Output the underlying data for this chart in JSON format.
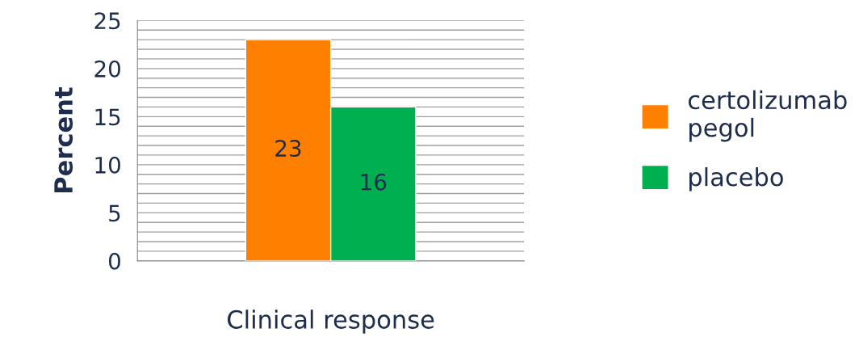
{
  "chart_data": {
    "type": "bar",
    "ylabel": "Percent",
    "xlabel": "Clinical response",
    "categories": [
      null
    ],
    "series": [
      {
        "name": "certolizumab pegol",
        "color": "#ff8000",
        "values": [
          23
        ]
      },
      {
        "name": "placebo",
        "color": "#00b050",
        "values": [
          16
        ]
      }
    ],
    "ylim": [
      0,
      25
    ],
    "yticks": [
      0,
      {
        "value": 1,
        "label": null
      },
      {
        "value": 2,
        "label": null
      },
      {
        "value": 3,
        "label": null
      },
      {
        "value": 4,
        "label": null
      },
      5,
      {
        "value": 6,
        "label": null
      },
      {
        "value": 7,
        "label": null
      },
      {
        "value": 8,
        "label": null
      },
      {
        "value": 9,
        "label": null
      },
      10,
      {
        "value": 11,
        "label": null
      },
      {
        "value": 12,
        "label": null
      },
      {
        "value": 13,
        "label": null
      },
      {
        "value": 14,
        "label": null
      },
      15,
      {
        "value": 16,
        "label": null
      },
      {
        "value": 17,
        "label": null
      },
      {
        "value": 18,
        "label": null
      },
      {
        "value": 19,
        "label": null
      },
      20,
      {
        "value": 21,
        "label": null
      },
      {
        "value": 22,
        "label": null
      },
      {
        "value": 23,
        "label": null
      },
      {
        "value": 24,
        "label": null
      },
      25
    ],
    "grid": "y",
    "legend": "right",
    "data_labels": true
  }
}
